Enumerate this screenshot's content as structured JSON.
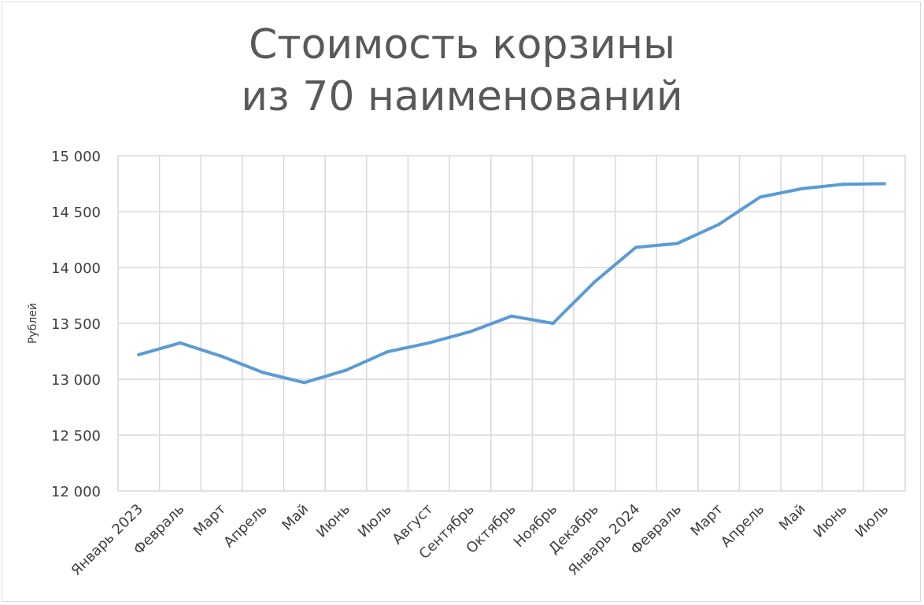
{
  "chart_data": {
    "type": "line",
    "title_lines": [
      "Стоимость корзины",
      "из 70 наименований"
    ],
    "xlabel": "",
    "ylabel": "Рублей",
    "categories": [
      "Январь 2023",
      "Февраль",
      "Март",
      "Апрель",
      "Май",
      "Июнь",
      "Июль",
      "Август",
      "Сентябрь",
      "Октябрь",
      "Ноябрь",
      "Декабрь",
      "Январь 2024",
      "Февраль",
      "Март",
      "Апрель",
      "Май",
      "Июнь",
      "Июль"
    ],
    "series": [
      {
        "values": [
          13220,
          13325,
          13205,
          13060,
          12970,
          13080,
          13245,
          13325,
          13425,
          13565,
          13500,
          13870,
          14180,
          14215,
          14385,
          14630,
          14705,
          14745,
          14750
        ],
        "color": "#5b9bd5"
      }
    ],
    "ylim": [
      12000,
      15000
    ],
    "yticks": [
      12000,
      12500,
      13000,
      13500,
      14000,
      14500,
      15000
    ],
    "ytick_labels": [
      "12 000",
      "12 500",
      "13 000",
      "13 500",
      "14 000",
      "14 500",
      "15 000"
    ],
    "grid": true,
    "grid_color": "#d9d9d9",
    "text_color": "#404040",
    "title_color": "#595959"
  }
}
